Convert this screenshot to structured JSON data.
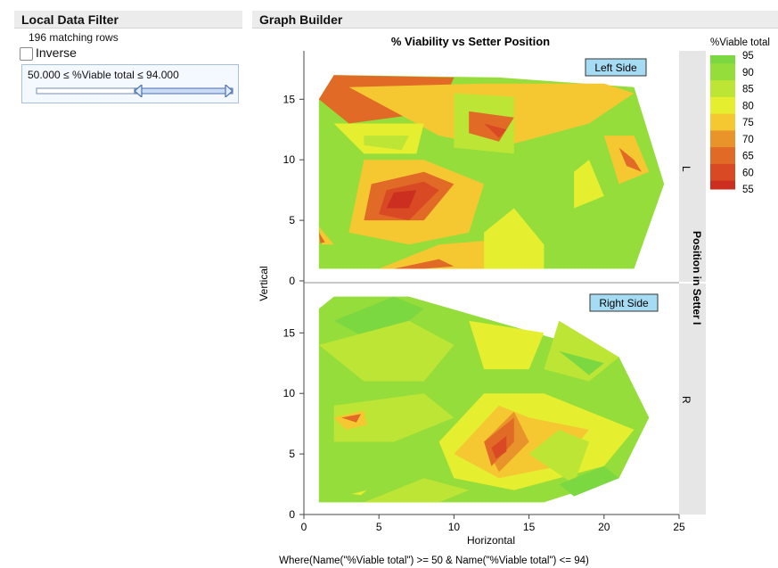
{
  "local_data_filter": {
    "title": "Local Data Filter",
    "matching_rows": "196 matching rows",
    "inverse_label": "Inverse",
    "inverse_checked": false,
    "range_text": "50.000 ≤ %Viable total ≤ 94.000",
    "slider": {
      "min": 55,
      "max": 95,
      "low": 50,
      "high": 94
    }
  },
  "graph_builder": {
    "title": "Graph Builder",
    "where_clause": "Where(Name(\"%Viable total\") >= 50 & Name(\"%Viable total\") <= 94)"
  },
  "chart_data": {
    "type": "contour",
    "title": "% Viability vs Setter Position",
    "xlabel": "Horizontal",
    "ylabel": "Vertical",
    "xlim": [
      0,
      25
    ],
    "ylim": [
      0,
      19
    ],
    "x_ticks": [
      "0",
      "5",
      "10",
      "15",
      "20",
      "25"
    ],
    "y_ticks": [
      "0",
      "5",
      "10",
      "15"
    ],
    "group_label": "Position in Setter I",
    "legend": {
      "title": "%Viable total",
      "levels": [
        "95",
        "90",
        "85",
        "80",
        "75",
        "70",
        "65",
        "60",
        "55"
      ],
      "colors": [
        "#7cd840",
        "#95dd3a",
        "#bde535",
        "#e5ee2f",
        "#f5c832",
        "#e9942a",
        "#e06a26",
        "#d94a24",
        "#cc2f1f"
      ]
    },
    "panels": [
      {
        "name": "L",
        "annotation": "Left Side",
        "outline": [
          [
            1,
            15
          ],
          [
            2,
            17
          ],
          [
            13,
            16.8
          ],
          [
            22,
            16
          ],
          [
            24,
            8
          ],
          [
            22,
            1
          ],
          [
            1,
            1
          ]
        ],
        "shapes": [
          {
            "c": 6,
            "pts": [
              [
                1,
                15
              ],
              [
                2,
                17
              ],
              [
                10,
                16.8
              ],
              [
                9,
                14
              ],
              [
                3,
                13
              ]
            ]
          },
          {
            "c": 4,
            "pts": [
              [
                3,
                16
              ],
              [
                12,
                16.3
              ],
              [
                20,
                16.3
              ],
              [
                22,
                15.5
              ],
              [
                19,
                13
              ],
              [
                13,
                11
              ],
              [
                9,
                12
              ]
            ]
          },
          {
            "c": 2,
            "pts": [
              [
                10,
                15.5
              ],
              [
                14,
                15.2
              ],
              [
                14,
                10.5
              ],
              [
                10,
                11
              ]
            ]
          },
          {
            "c": 6,
            "pts": [
              [
                11,
                14
              ],
              [
                14,
                13.5
              ],
              [
                13,
                11.5
              ],
              [
                11,
                12.2
              ]
            ]
          },
          {
            "c": 7,
            "pts": [
              [
                12,
                13
              ],
              [
                13.5,
                12.5
              ],
              [
                13,
                11.8
              ]
            ]
          },
          {
            "c": 3,
            "pts": [
              [
                2,
                13
              ],
              [
                8,
                13
              ],
              [
                7.5,
                10.5
              ],
              [
                4,
                10.5
              ]
            ]
          },
          {
            "c": 2,
            "pts": [
              [
                4,
                12
              ],
              [
                7,
                12
              ],
              [
                6.5,
                10.8
              ],
              [
                4,
                11.2
              ]
            ]
          },
          {
            "c": 4,
            "pts": [
              [
                3,
                4
              ],
              [
                4,
                10
              ],
              [
                8,
                10
              ],
              [
                12,
                8
              ],
              [
                11,
                4
              ],
              [
                7,
                3
              ]
            ]
          },
          {
            "c": 6,
            "pts": [
              [
                4,
                5
              ],
              [
                4.5,
                8
              ],
              [
                8,
                9
              ],
              [
                10,
                8
              ],
              [
                8,
                5
              ]
            ]
          },
          {
            "c": 7,
            "pts": [
              [
                5,
                5.5
              ],
              [
                5.5,
                7.5
              ],
              [
                8,
                8.2
              ],
              [
                9,
                7.5
              ],
              [
                7,
                5
              ]
            ]
          },
          {
            "c": 8,
            "pts": [
              [
                5.5,
                6
              ],
              [
                6,
                7.3
              ],
              [
                7.5,
                7.5
              ],
              [
                7,
                6
              ]
            ]
          },
          {
            "c": 4,
            "pts": [
              [
                5,
                1
              ],
              [
                14,
                1
              ],
              [
                14,
                3.5
              ],
              [
                9,
                3
              ]
            ]
          },
          {
            "c": 6,
            "pts": [
              [
                6,
                1
              ],
              [
                9,
                1.8
              ],
              [
                10,
                1.2
              ],
              [
                8,
                1
              ]
            ]
          },
          {
            "c": 3,
            "pts": [
              [
                14,
                6
              ],
              [
                16,
                3
              ],
              [
                16,
                1
              ],
              [
                12,
                1
              ],
              [
                12,
                4
              ]
            ]
          },
          {
            "c": 4,
            "pts": [
              [
                20,
                12
              ],
              [
                22,
                12
              ],
              [
                23,
                9
              ],
              [
                21,
                8
              ]
            ]
          },
          {
            "c": 6,
            "pts": [
              [
                21,
                11
              ],
              [
                22,
                10
              ],
              [
                22.5,
                9
              ],
              [
                21.5,
                9.5
              ]
            ]
          },
          {
            "c": 3,
            "pts": [
              [
                18,
                9
              ],
              [
                19,
                10
              ],
              [
                20,
                7
              ],
              [
                18,
                6
              ]
            ]
          },
          {
            "c": 4,
            "pts": [
              [
                1,
                4.5
              ],
              [
                2,
                3
              ],
              [
                1.2,
                3
              ]
            ]
          },
          {
            "c": 6,
            "pts": [
              [
                1,
                4
              ],
              [
                1.4,
                3.2
              ],
              [
                1.1,
                3.1
              ]
            ]
          }
        ]
      },
      {
        "name": "R",
        "annotation": "Right Side",
        "outline": [
          [
            1,
            17
          ],
          [
            2,
            18
          ],
          [
            7,
            18
          ],
          [
            21,
            13
          ],
          [
            23,
            8
          ],
          [
            21,
            3
          ],
          [
            16,
            1
          ],
          [
            1,
            1
          ]
        ],
        "shapes": [
          {
            "c": 0,
            "pts": [
              [
                2,
                16
              ],
              [
                6,
                18
              ],
              [
                8,
                17
              ],
              [
                5,
                14
              ]
            ]
          },
          {
            "c": 2,
            "pts": [
              [
                1,
                14
              ],
              [
                7,
                16
              ],
              [
                10,
                14
              ],
              [
                8,
                11
              ],
              [
                4,
                11
              ]
            ]
          },
          {
            "c": 2,
            "pts": [
              [
                2,
                9
              ],
              [
                8,
                10
              ],
              [
                10,
                8
              ],
              [
                6,
                6
              ],
              [
                2,
                6
              ]
            ]
          },
          {
            "c": 2,
            "pts": [
              [
                17,
                16
              ],
              [
                21,
                13
              ],
              [
                19,
                11
              ],
              [
                16,
                12
              ]
            ]
          },
          {
            "c": 0,
            "pts": [
              [
                17,
                13.5
              ],
              [
                20,
                12.5
              ],
              [
                19,
                11.5
              ]
            ]
          },
          {
            "c": 3,
            "pts": [
              [
                11,
                16
              ],
              [
                16,
                15
              ],
              [
                15,
                12
              ],
              [
                12,
                12
              ]
            ]
          },
          {
            "c": 3,
            "pts": [
              [
                9,
                6
              ],
              [
                12,
                10
              ],
              [
                16,
                10
              ],
              [
                22,
                7
              ],
              [
                20,
                4
              ],
              [
                14,
                2
              ],
              [
                10,
                3
              ]
            ]
          },
          {
            "c": 4,
            "pts": [
              [
                10,
                5
              ],
              [
                13,
                9
              ],
              [
                15,
                8
              ],
              [
                19,
                7
              ],
              [
                17,
                4
              ],
              [
                13,
                3
              ]
            ]
          },
          {
            "c": 5,
            "pts": [
              [
                12,
                6
              ],
              [
                14,
                8.5
              ],
              [
                15,
                6
              ],
              [
                13,
                3.5
              ]
            ]
          },
          {
            "c": 6,
            "pts": [
              [
                12,
                6
              ],
              [
                14,
                8
              ],
              [
                14,
                6
              ],
              [
                12.5,
                4
              ]
            ]
          },
          {
            "c": 7,
            "pts": [
              [
                12.5,
                5.5
              ],
              [
                13.5,
                6.5
              ],
              [
                13.5,
                5.2
              ],
              [
                12.8,
                4.6
              ]
            ]
          },
          {
            "c": 2,
            "pts": [
              [
                15,
                5
              ],
              [
                17,
                7
              ],
              [
                19,
                6
              ],
              [
                18,
                2.5
              ]
            ]
          },
          {
            "c": 4,
            "pts": [
              [
                2,
                8
              ],
              [
                4,
                8.6
              ],
              [
                4.2,
                7.4
              ],
              [
                2.8,
                7
              ]
            ]
          },
          {
            "c": 6,
            "pts": [
              [
                2.5,
                8
              ],
              [
                3.8,
                8.3
              ],
              [
                3.5,
                7.6
              ]
            ]
          },
          {
            "c": 0,
            "pts": [
              [
                17,
                2.5
              ],
              [
                20,
                4
              ],
              [
                21,
                3
              ],
              [
                18,
                1.5
              ]
            ]
          },
          {
            "c": 2,
            "pts": [
              [
                4,
                1
              ],
              [
                8,
                3
              ],
              [
                11,
                2
              ],
              [
                9,
                1
              ]
            ]
          },
          {
            "c": 3,
            "pts": [
              [
                3.2,
                1.7
              ],
              [
                4.2,
                2
              ],
              [
                3.8,
                1.6
              ]
            ]
          }
        ]
      }
    ]
  }
}
